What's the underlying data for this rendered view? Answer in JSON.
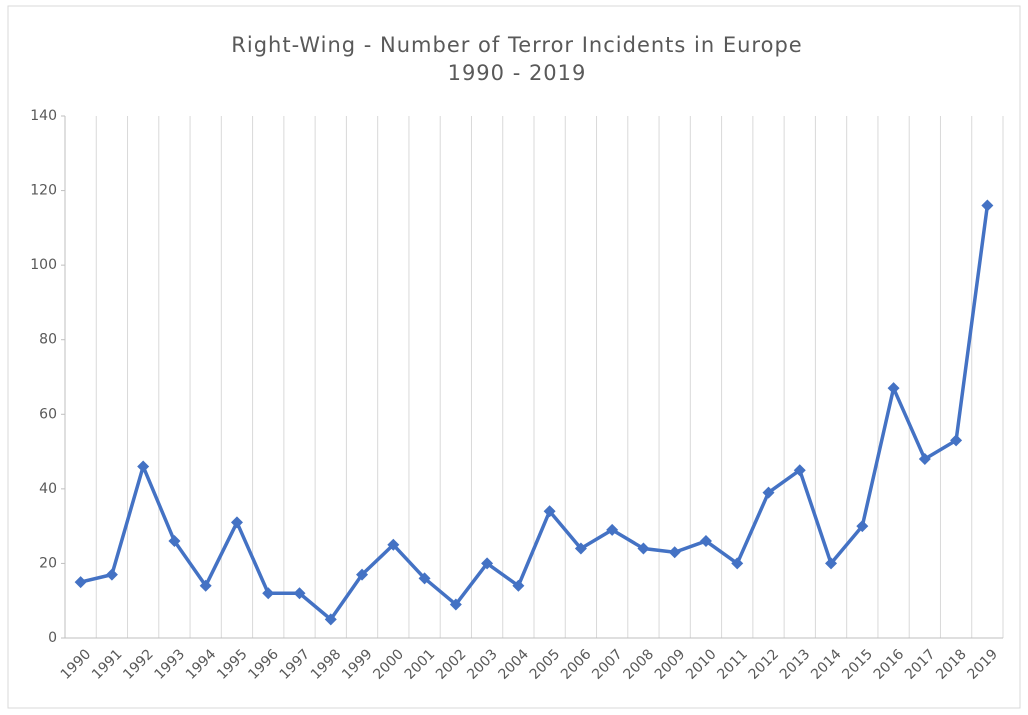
{
  "chart_data": {
    "type": "line",
    "title": "Right-Wing - Number of Terror Incidents in Europe",
    "subtitle": "1990 - 2019",
    "categories": [
      "1990",
      "1991",
      "1992",
      "1993",
      "1994",
      "1995",
      "1996",
      "1997",
      "1998",
      "1999",
      "2000",
      "2001",
      "2002",
      "2003",
      "2004",
      "2005",
      "2006",
      "2007",
      "2008",
      "2009",
      "2010",
      "2011",
      "2012",
      "2013",
      "2014",
      "2015",
      "2016",
      "2017",
      "2018",
      "2019"
    ],
    "values": [
      15,
      17,
      46,
      26,
      14,
      31,
      12,
      12,
      5,
      17,
      25,
      16,
      9,
      20,
      14,
      34,
      24,
      29,
      24,
      23,
      26,
      20,
      39,
      45,
      20,
      30,
      67,
      48,
      53,
      116
    ],
    "color": "#4472c4",
    "ylim": [
      0,
      140
    ],
    "yticks": [
      0,
      20,
      40,
      60,
      80,
      100,
      120,
      140
    ],
    "grid": "vertical"
  }
}
